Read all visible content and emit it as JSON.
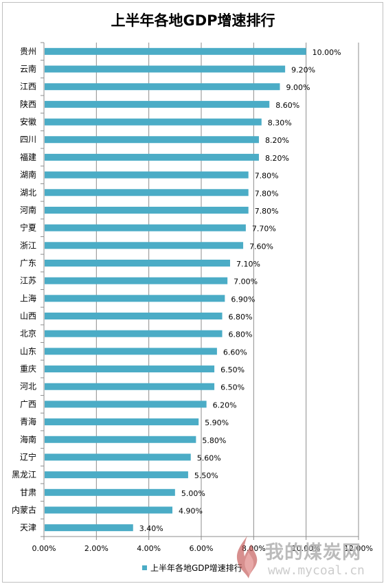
{
  "colors": {
    "bar": "#4bacc6",
    "grid": "#8c8c8c",
    "axis": "#8c8c8c",
    "flame": "#c0504d"
  },
  "chart_data": {
    "type": "bar",
    "orientation": "horizontal",
    "title": "上半年各地GDP增速排行",
    "xlabel": "",
    "ylabel": "",
    "xlim": [
      0,
      0.12
    ],
    "x_ticks": [
      "0.00%",
      "2.00%",
      "4.00%",
      "6.00%",
      "8.00%",
      "10.00%",
      "12.00%"
    ],
    "grid": "vertical",
    "legend_position": "bottom",
    "categories": [
      "贵州",
      "云南",
      "江西",
      "陕西",
      "安徽",
      "四川",
      "福建",
      "湖南",
      "湖北",
      "河南",
      "宁夏",
      "浙江",
      "广东",
      "江苏",
      "上海",
      "山西",
      "北京",
      "山东",
      "重庆",
      "河北",
      "广西",
      "青海",
      "海南",
      "辽宁",
      "黑龙江",
      "甘肃",
      "内蒙古",
      "天津"
    ],
    "series": [
      {
        "name": "上半年各地GDP增速排行",
        "values": [
          0.1,
          0.092,
          0.09,
          0.086,
          0.083,
          0.082,
          0.082,
          0.078,
          0.078,
          0.078,
          0.077,
          0.076,
          0.071,
          0.07,
          0.069,
          0.068,
          0.068,
          0.066,
          0.065,
          0.065,
          0.062,
          0.059,
          0.058,
          0.056,
          0.055,
          0.05,
          0.049,
          0.034
        ],
        "labels": [
          "10.00%",
          "9.20%",
          "9.00%",
          "8.60%",
          "8.30%",
          "8.20%",
          "8.20%",
          "7.80%",
          "7.80%",
          "7.80%",
          "7.70%",
          "7.60%",
          "7.10%",
          "7.00%",
          "6.90%",
          "6.80%",
          "6.80%",
          "6.60%",
          "6.50%",
          "6.50%",
          "6.20%",
          "5.90%",
          "5.80%",
          "5.60%",
          "5.50%",
          "5.00%",
          "4.90%",
          "3.40%"
        ]
      }
    ]
  },
  "watermark": {
    "text": "我的煤炭网",
    "url": "www.mycoal.cn",
    "logo_icon": "flame-logo-icon"
  }
}
